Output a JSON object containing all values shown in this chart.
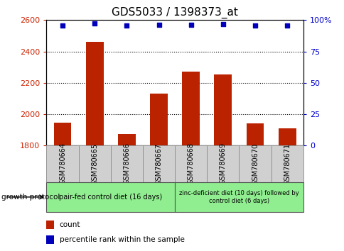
{
  "title": "GDS5033 / 1398373_at",
  "samples": [
    "GSM780664",
    "GSM780665",
    "GSM780666",
    "GSM780667",
    "GSM780668",
    "GSM780669",
    "GSM780670",
    "GSM780671"
  ],
  "counts": [
    1945,
    2460,
    1875,
    2130,
    2270,
    2255,
    1940,
    1910
  ],
  "percentiles": [
    95.5,
    97.5,
    95.5,
    96.5,
    96.5,
    97.0,
    95.5,
    95.5
  ],
  "ylim_left": [
    1800,
    2600
  ],
  "ylim_right": [
    0,
    100
  ],
  "yticks_left": [
    1800,
    2000,
    2200,
    2400,
    2600
  ],
  "yticks_right": [
    0,
    25,
    50,
    75,
    100
  ],
  "bar_color": "#bb2200",
  "dot_color": "#0000bb",
  "bar_width": 0.55,
  "group1_label": "pair-fed control diet (16 days)",
  "group2_label": "zinc-deficient diet (10 days) followed by\ncontrol diet (6 days)",
  "group1_indices": [
    0,
    1,
    2,
    3
  ],
  "group2_indices": [
    4,
    5,
    6,
    7
  ],
  "group1_color": "#90ee90",
  "group2_color": "#90ee90",
  "protocol_label": "growth protocol",
  "legend_count_label": "count",
  "legend_percentile_label": "percentile rank within the sample",
  "grid_color": "#000000",
  "tick_label_color_left": "#cc2200",
  "tick_label_color_right": "#0000cc",
  "sample_box_color": "#d0d0d0",
  "title_fontsize": 11,
  "axis_fontsize": 8,
  "sample_fontsize": 7,
  "legend_fontsize": 7.5
}
